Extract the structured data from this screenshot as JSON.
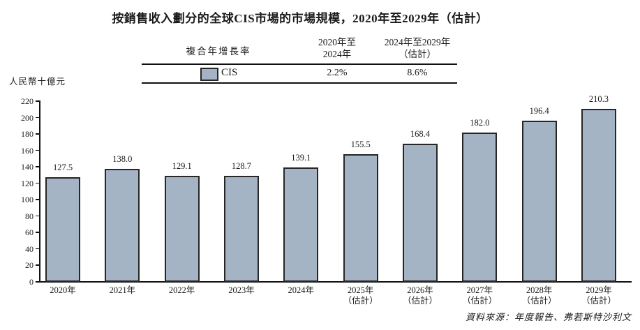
{
  "page": {
    "title": "按銷售收入劃分的全球CIS市場的市場規模，2020年至2029年（估計）"
  },
  "cagr_table": {
    "row_header": "複合年增長率",
    "columns": [
      {
        "line1": "2020年至",
        "line2": "2024年"
      },
      {
        "line1": "2024年至2029年",
        "line2": "（估計）"
      }
    ],
    "series_label": "CIS",
    "values": [
      "2.2%",
      "8.6%"
    ]
  },
  "axis_unit": "人民幣十億元",
  "source_note": "資料來源：年度報告、弗若斯特沙利文",
  "chart_data": {
    "type": "bar",
    "title": "按銷售收入劃分的全球CIS市場的市場規模，2020年至2029年（估計）",
    "categories": [
      {
        "label": "2020年",
        "sub": ""
      },
      {
        "label": "2021年",
        "sub": ""
      },
      {
        "label": "2022年",
        "sub": ""
      },
      {
        "label": "2023年",
        "sub": ""
      },
      {
        "label": "2024年",
        "sub": ""
      },
      {
        "label": "2025年",
        "sub": "（估計）"
      },
      {
        "label": "2026年",
        "sub": "（估計）"
      },
      {
        "label": "2027年",
        "sub": "（估計）"
      },
      {
        "label": "2028年",
        "sub": "（估計）"
      },
      {
        "label": "2029年",
        "sub": "（估計）"
      }
    ],
    "values": [
      127.5,
      138.0,
      129.1,
      128.7,
      139.1,
      155.5,
      168.4,
      182.0,
      196.4,
      210.3
    ],
    "value_labels": [
      "127.5",
      "138.0",
      "129.1",
      "128.7",
      "139.1",
      "155.5",
      "168.4",
      "182.0",
      "196.4",
      "210.3"
    ],
    "ylabel": "人民幣十億元",
    "ylim": [
      0,
      220
    ],
    "ytick_step": 20,
    "grid": false,
    "legend": {
      "position": "top-table",
      "entries": [
        "CIS"
      ]
    },
    "cagr": {
      "2020-2024": "2.2%",
      "2024-2029E": "8.6%"
    },
    "bar_color": "#a5b4c4",
    "bar_border_color": "#262626",
    "axis_color": "#111111"
  }
}
